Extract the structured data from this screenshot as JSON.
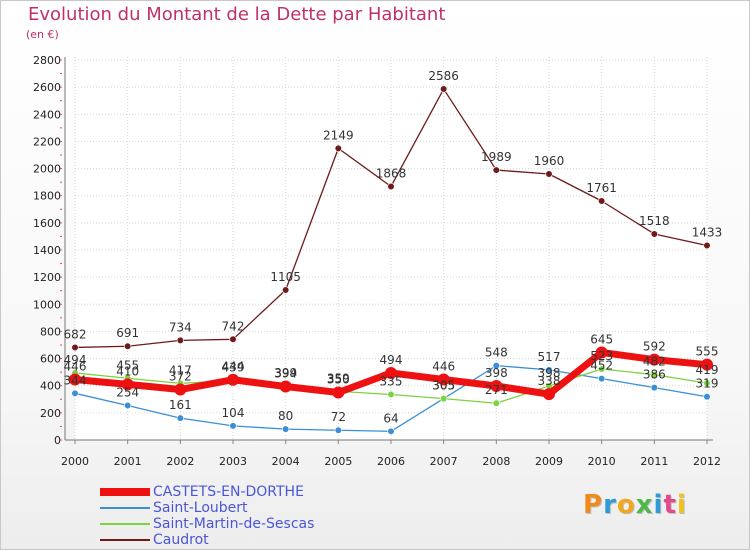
{
  "title": "Evolution du Montant de la Dette par Habitant",
  "subtitle": "(en €)",
  "logo": {
    "text": "Proxiti",
    "letter_colors": [
      "#f08a1c",
      "#2f9bd6",
      "#f0a81c",
      "#4fb848",
      "#2f9bd6",
      "#e24a8c",
      "#f0c21c"
    ]
  },
  "chart_data": {
    "type": "line",
    "categories": [
      "2000",
      "2001",
      "2002",
      "2003",
      "2004",
      "2005",
      "2006",
      "2007",
      "2008",
      "2009",
      "2010",
      "2011",
      "2012"
    ],
    "ylim": [
      0,
      2800
    ],
    "yticks": [
      0,
      200,
      400,
      600,
      800,
      1000,
      1200,
      1400,
      1600,
      1800,
      2000,
      2200,
      2400,
      2600,
      2800
    ],
    "grid": true,
    "xlabel": "",
    "ylabel": "",
    "series": [
      {
        "name": "Caudrot",
        "color": "#6e1a1a",
        "values": [
          682,
          691,
          734,
          742,
          1105,
          2149,
          1868,
          2586,
          1989,
          1960,
          1761,
          1518,
          1433
        ]
      },
      {
        "name": "Saint-Loubert",
        "color": "#3a8fd6",
        "values": [
          344,
          254,
          161,
          104,
          80,
          72,
          64,
          305,
          548,
          517,
          452,
          386,
          319
        ]
      },
      {
        "name": "Saint-Martin-de-Sescas",
        "color": "#7cd340",
        "values": [
          494,
          455,
          417,
          439,
          399,
          359,
          335,
          305,
          271,
          398,
          523,
          482,
          419
        ]
      },
      {
        "name": "CASTETS-EN-DORTHE",
        "color": "#ee1111",
        "values": [
          446,
          410,
          372,
          444,
          394,
          350,
          494,
          446,
          398,
          338,
          645,
          592,
          555
        ]
      }
    ],
    "legend_order": [
      "CASTETS-EN-DORTHE",
      "Saint-Loubert",
      "Saint-Martin-de-Sescas",
      "Caudrot"
    ],
    "legend_position": "bottom-left"
  }
}
